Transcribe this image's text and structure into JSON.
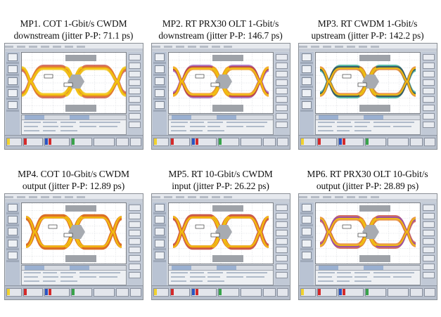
{
  "panels": [
    {
      "id": "mp1",
      "caption_line1": "MP1. COT 1-Gbit/s CWDM",
      "caption_line2": "downstream (jitter P-P: 71.1 ps)",
      "eye_style": "wide",
      "colors": [
        "#c0392b",
        "#e67e22",
        "#f1c40f"
      ]
    },
    {
      "id": "mp2",
      "caption_line1": "MP2. RT PRX30 OLT 1-Gbit/s",
      "caption_line2": "downstream (jitter P-P: 146.7 ps)",
      "eye_style": "multi",
      "colors": [
        "#8e44ad",
        "#c0392b",
        "#f39c12",
        "#f1c40f"
      ]
    },
    {
      "id": "mp3",
      "caption_line1": "MP3. RT CWDM 1-Gbit/s",
      "caption_line2": "upstream (jitter P-P: 142.2 ps)",
      "eye_style": "multi",
      "colors": [
        "#16a085",
        "#2c3e50",
        "#e67e22",
        "#f1c40f"
      ]
    },
    {
      "id": "mp4",
      "caption_line1": "MP4. COT 10-Gbit/s CWDM",
      "caption_line2": "output (jitter P-P: 12.89 ps)",
      "eye_style": "clean",
      "colors": [
        "#d35400",
        "#e67e22",
        "#f1c40f"
      ]
    },
    {
      "id": "mp5",
      "caption_line1": "MP5. RT 10-Gbit/s CWDM",
      "caption_line2": "input (jitter P-P: 26.22 ps)",
      "eye_style": "clean",
      "colors": [
        "#c0392b",
        "#e67e22",
        "#f1c40f"
      ]
    },
    {
      "id": "mp6",
      "caption_line1": "MP6. RT PRX30 OLT 10-Gbit/s",
      "caption_line2": "output (jitter P-P: 28.89 ps)",
      "eye_style": "multi",
      "colors": [
        "#c0392b",
        "#8e44ad",
        "#e67e22",
        "#f1c40f"
      ]
    }
  ]
}
